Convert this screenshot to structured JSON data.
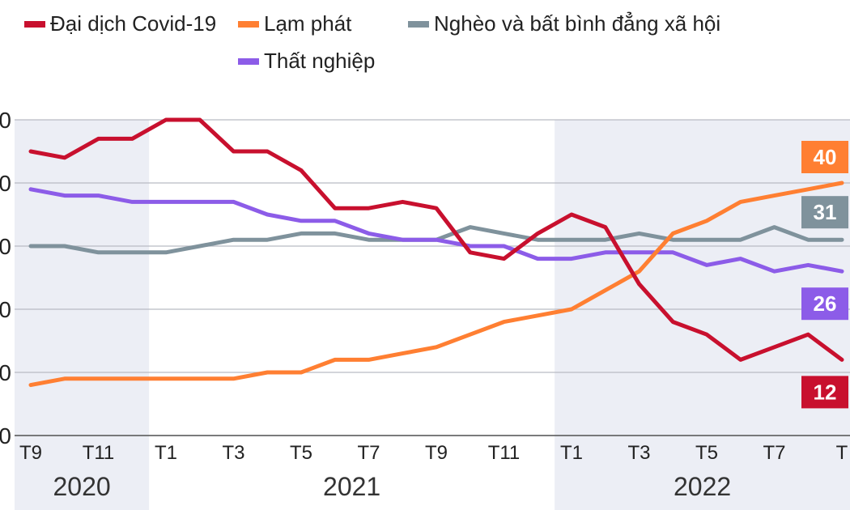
{
  "chart_data": {
    "type": "line",
    "x": [
      "T9 2020",
      "T10 2020",
      "T11 2020",
      "T12 2020",
      "T1 2021",
      "T2 2021",
      "T3 2021",
      "T4 2021",
      "T5 2021",
      "T6 2021",
      "T7 2021",
      "T8 2021",
      "T9 2021",
      "T10 2021",
      "T11 2021",
      "T12 2021",
      "T1 2022",
      "T2 2022",
      "T3 2022",
      "T4 2022",
      "T5 2022",
      "T6 2022",
      "T7 2022",
      "T8 2022",
      "T9 2022"
    ],
    "x_tick_labels": [
      "T9",
      "T11",
      "T1",
      "T3",
      "T5",
      "T7",
      "T9",
      "T11",
      "T1",
      "T3",
      "T5",
      "T7",
      "T"
    ],
    "x_tick_index": [
      0,
      2,
      4,
      6,
      8,
      10,
      12,
      14,
      16,
      18,
      20,
      22,
      24
    ],
    "year_labels": [
      {
        "label": "2020",
        "from": 0,
        "to": 3.5,
        "shaded": true
      },
      {
        "label": "2021",
        "from": 3.5,
        "to": 15.5,
        "shaded": false
      },
      {
        "label": "2022",
        "from": 15.5,
        "to": 24,
        "shaded": true
      }
    ],
    "y_tick_labels": [
      "0",
      "0",
      "0",
      "0",
      "0",
      "0"
    ],
    "y_tick_values": [
      0,
      10,
      20,
      30,
      40,
      50
    ],
    "ylim": [
      0,
      50
    ],
    "grid": true,
    "legend_position": "top",
    "series": [
      {
        "name": "Đại dịch Covid-19",
        "color": "#c8102e",
        "values": [
          45,
          44,
          47,
          47,
          50,
          50,
          45,
          45,
          42,
          36,
          36,
          37,
          36,
          29,
          28,
          32,
          35,
          33,
          24,
          18,
          16,
          12,
          14,
          16,
          12
        ],
        "end_label": "12"
      },
      {
        "name": "Lạm phát",
        "color": "#ff7f32",
        "values": [
          8,
          9,
          9,
          9,
          9,
          9,
          9,
          10,
          10,
          12,
          12,
          13,
          14,
          16,
          18,
          19,
          20,
          23,
          26,
          32,
          34,
          37,
          38,
          39,
          40
        ],
        "end_label": "40"
      },
      {
        "name": "Nghèo và bất bình đẳng xã hội",
        "color": "#7f929c",
        "values": [
          30,
          30,
          29,
          29,
          29,
          30,
          31,
          31,
          32,
          32,
          31,
          31,
          31,
          33,
          32,
          31,
          31,
          31,
          32,
          31,
          31,
          31,
          33,
          31,
          31
        ],
        "end_label": "31"
      },
      {
        "name": "Thất nghiệp",
        "color": "#8c5ce8",
        "values": [
          39,
          38,
          38,
          37,
          37,
          37,
          37,
          35,
          34,
          34,
          32,
          31,
          31,
          30,
          30,
          28,
          28,
          29,
          29,
          29,
          27,
          28,
          26,
          27,
          26
        ],
        "end_label": "26"
      }
    ]
  }
}
